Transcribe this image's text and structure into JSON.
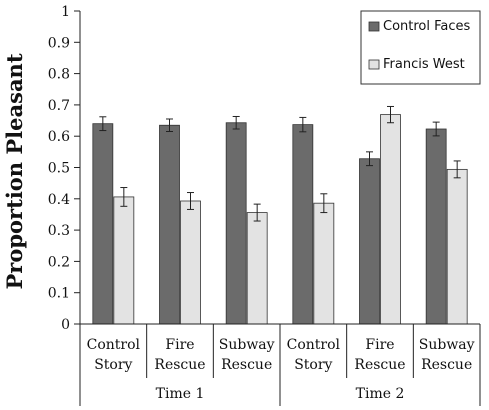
{
  "chart_data": {
    "type": "bar",
    "title": "",
    "xlabel": "",
    "ylabel": "Proportion Pleasant",
    "ylim": [
      0,
      1
    ],
    "yticks": [
      "0",
      "0.1",
      "0.2",
      "0.3",
      "0.4",
      "0.5",
      "0.6",
      "0.7",
      "0.8",
      "0.9",
      "1"
    ],
    "grid": false,
    "legend_position": "top-right",
    "categories": [
      {
        "line1": "Control",
        "line2": "Story"
      },
      {
        "line1": "Fire",
        "line2": "Rescue"
      },
      {
        "line1": "Subway",
        "line2": "Rescue"
      },
      {
        "line1": "Control",
        "line2": "Story"
      },
      {
        "line1": "Fire",
        "line2": "Rescue"
      },
      {
        "line1": "Subway",
        "line2": "Rescue"
      }
    ],
    "groups": [
      {
        "label": "Time 1",
        "categories": [
          0,
          1,
          2
        ]
      },
      {
        "label": "Time 2",
        "categories": [
          3,
          4,
          5
        ]
      }
    ],
    "series": [
      {
        "name": "Control Faces",
        "color": "#6b6b6b",
        "values": [
          0.64,
          0.635,
          0.643,
          0.637,
          0.528,
          0.623
        ],
        "errors": [
          0.022,
          0.02,
          0.02,
          0.023,
          0.022,
          0.022
        ]
      },
      {
        "name": "Francis West",
        "color": "#e3e3e3",
        "values": [
          0.406,
          0.393,
          0.356,
          0.386,
          0.669,
          0.494
        ],
        "errors": [
          0.03,
          0.027,
          0.027,
          0.03,
          0.026,
          0.027
        ]
      }
    ]
  }
}
